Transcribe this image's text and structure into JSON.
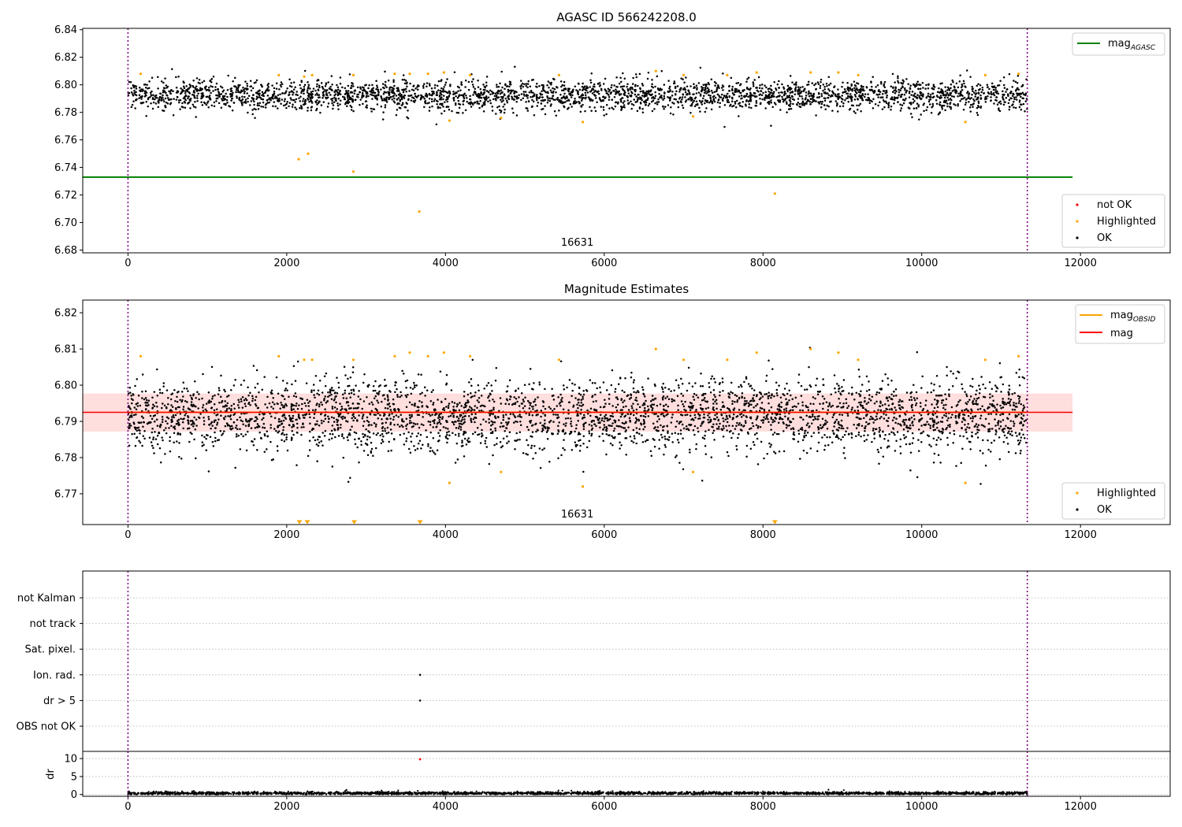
{
  "chart_data": [
    {
      "type": "scatter",
      "title": "AGASC ID 566242208.0",
      "xlim": [
        -570,
        13130
      ],
      "ylim": [
        6.678,
        6.841
      ],
      "xticks": [
        0,
        2000,
        4000,
        6000,
        8000,
        10000,
        12000
      ],
      "yticks": [
        6.68,
        6.7,
        6.72,
        6.74,
        6.76,
        6.78,
        6.8,
        6.82,
        6.84
      ],
      "vlines": [
        0,
        11330
      ],
      "obsid_label": {
        "text": "16631",
        "x": 5660
      },
      "hline": {
        "name": "mag_AGASC",
        "y": 6.733,
        "x_range": [
          -570,
          11900
        ],
        "color": "#008000"
      },
      "ok_band": {
        "x_range": [
          0,
          11330
        ],
        "center": 6.7925,
        "spread": 0.0055,
        "count": 3200
      },
      "highlighted": [
        [
          160,
          6.808
        ],
        [
          1900,
          6.807
        ],
        [
          2150,
          6.746
        ],
        [
          2220,
          6.806
        ],
        [
          2270,
          6.75
        ],
        [
          2320,
          6.807
        ],
        [
          2840,
          6.807
        ],
        [
          2840,
          6.737
        ],
        [
          3360,
          6.808
        ],
        [
          3550,
          6.808
        ],
        [
          3670,
          6.708
        ],
        [
          3780,
          6.808
        ],
        [
          3980,
          6.809
        ],
        [
          4050,
          6.774
        ],
        [
          4310,
          6.807
        ],
        [
          4700,
          6.776
        ],
        [
          5430,
          6.807
        ],
        [
          5730,
          6.773
        ],
        [
          6650,
          6.81
        ],
        [
          7000,
          6.807
        ],
        [
          7120,
          6.777
        ],
        [
          7550,
          6.807
        ],
        [
          7920,
          6.809
        ],
        [
          8150,
          6.721
        ],
        [
          8600,
          6.809
        ],
        [
          8950,
          6.809
        ],
        [
          9200,
          6.807
        ],
        [
          10550,
          6.773
        ],
        [
          10800,
          6.807
        ],
        [
          11220,
          6.808
        ]
      ],
      "legend_lines": [
        {
          "label": "mag",
          "sub": "AGASC",
          "color": "#008000"
        }
      ],
      "legend_points": [
        {
          "label": "not OK",
          "color": "#ff0000"
        },
        {
          "label": "Highlighted",
          "color": "#ffa500"
        },
        {
          "label": "OK",
          "color": "#000000"
        }
      ]
    },
    {
      "type": "scatter",
      "title": "Magnitude Estimates",
      "xlim": [
        -570,
        13130
      ],
      "ylim": [
        6.7615,
        6.8235
      ],
      "xticks": [
        0,
        2000,
        4000,
        6000,
        8000,
        10000,
        12000
      ],
      "yticks": [
        6.77,
        6.78,
        6.79,
        6.8,
        6.81,
        6.82
      ],
      "vlines": [
        0,
        11330
      ],
      "obsid_label": {
        "text": "16631",
        "x": 5660
      },
      "mag_line": {
        "y": 6.7925,
        "x_range": [
          -570,
          11900
        ],
        "color": "#ff0000"
      },
      "mag_band": {
        "low": 6.7872,
        "high": 6.7977,
        "x_range": [
          -570,
          11900
        ]
      },
      "mag_obsid_line": {
        "y": 6.7925,
        "x_range": [
          0,
          11330
        ],
        "color": "#ffa500"
      },
      "ok_band": {
        "x_range": [
          0,
          11330
        ],
        "center": 6.7915,
        "spread": 0.005,
        "count": 3500
      },
      "highlighted": [
        [
          160,
          6.808
        ],
        [
          1900,
          6.808
        ],
        [
          2220,
          6.807
        ],
        [
          2320,
          6.807
        ],
        [
          2840,
          6.807
        ],
        [
          3360,
          6.808
        ],
        [
          3550,
          6.809
        ],
        [
          3780,
          6.808
        ],
        [
          3980,
          6.809
        ],
        [
          4050,
          6.773
        ],
        [
          4310,
          6.808
        ],
        [
          4700,
          6.776
        ],
        [
          5430,
          6.807
        ],
        [
          5730,
          6.772
        ],
        [
          6650,
          6.81
        ],
        [
          7000,
          6.807
        ],
        [
          7120,
          6.776
        ],
        [
          7550,
          6.807
        ],
        [
          7920,
          6.809
        ],
        [
          8600,
          6.81
        ],
        [
          8950,
          6.809
        ],
        [
          9200,
          6.807
        ],
        [
          10550,
          6.773
        ],
        [
          10800,
          6.807
        ],
        [
          11220,
          6.808
        ]
      ],
      "offscale_markers_x": [
        2160,
        2260,
        2850,
        3680,
        8150
      ],
      "legend_lines": [
        {
          "label": "mag",
          "sub": "OBSID",
          "color": "#ffa500"
        },
        {
          "label": "mag",
          "sub": "",
          "color": "#ff0000"
        }
      ],
      "legend_points": [
        {
          "label": "Highlighted",
          "color": "#ffa500"
        },
        {
          "label": "OK",
          "color": "#000000"
        }
      ]
    },
    {
      "type": "scatter",
      "title": "",
      "xlim": [
        -570,
        13130
      ],
      "vlines": [
        0,
        11330
      ],
      "flag_rows": [
        "not Kalman",
        "not track",
        "Sat. pixel.",
        "Ion. rad.",
        "dr > 5",
        "OBS not OK"
      ],
      "flag_points": [
        {
          "row": "Ion. rad.",
          "x": 3680
        },
        {
          "row": "dr > 5",
          "x": 3680
        }
      ]
    },
    {
      "type": "scatter",
      "title": "",
      "ylabel": "dr",
      "xlim": [
        -570,
        13130
      ],
      "ylim": [
        -0.5,
        12
      ],
      "xticks": [
        0,
        2000,
        4000,
        6000,
        8000,
        10000,
        12000
      ],
      "yticks": [
        0,
        5,
        10
      ],
      "vlines": [
        0,
        11330
      ],
      "dr_series": {
        "x_range": [
          0,
          11330
        ],
        "level": 0.35,
        "spread": 0.2,
        "count": 2800
      },
      "dr_outlier": {
        "x": 3680,
        "y": 9.8,
        "color": "#ff0000"
      }
    }
  ]
}
